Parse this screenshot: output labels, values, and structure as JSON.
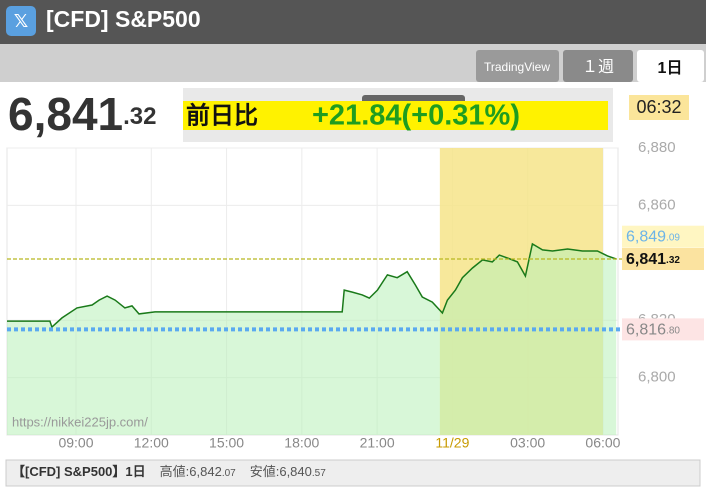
{
  "header": {
    "title": "[CFD] S&P500",
    "icon": "𝕏"
  },
  "tabs": [
    "TradingView",
    "１週",
    "1日"
  ],
  "price": {
    "int": "6,841",
    "dec": ".32"
  },
  "change": {
    "label": "前日比",
    "value": "+21.84(+0.31%)"
  },
  "time": "06:32",
  "watermark": "https://nikkei225jp.com/",
  "footer": {
    "title": "【[CFD] S&P500】1日",
    "high_label": "高値:",
    "high_int": "6,842",
    "high_dec": ".07",
    "low_label": "安値:",
    "low_int": "6,840",
    "low_dec": ".57"
  },
  "chart_data": {
    "type": "line",
    "xlim": [
      6.25,
      30.6
    ],
    "xticks": [
      {
        "value": 9,
        "label": "09:00"
      },
      {
        "value": 12,
        "label": "12:00"
      },
      {
        "value": 15,
        "label": "15:00"
      },
      {
        "value": 18,
        "label": "18:00"
      },
      {
        "value": 21,
        "label": "21:00"
      },
      {
        "value": 24,
        "label": "11/29"
      },
      {
        "value": 27,
        "label": "03:00"
      },
      {
        "value": 30,
        "label": "06:00"
      }
    ],
    "ylim": [
      6780,
      6880
    ],
    "yticks": [
      {
        "value": 6800,
        "label": "6,800"
      },
      {
        "value": 6820,
        "label": "6,820"
      },
      {
        "value": 6860,
        "label": "6,860"
      },
      {
        "value": 6880,
        "label": "6,880"
      }
    ],
    "grid": true,
    "highlight_range": [
      23.5,
      30
    ],
    "series": [
      {
        "color": "#1a7a1a",
        "x": [
          6.25,
          7.96,
          8.04,
          8.44,
          9.04,
          9.64,
          9.92,
          10.24,
          10.56,
          10.95,
          11.23,
          11.51,
          12.15,
          19.61,
          19.69,
          20.01,
          20.41,
          20.69,
          21.01,
          21.41,
          21.8,
          22.2,
          22.52,
          22.8,
          23.2,
          23.6,
          23.8,
          24.12,
          24.4,
          24.8,
          25.2,
          25.59,
          25.87,
          26.19,
          26.59,
          26.91,
          27.19,
          27.59,
          27.99,
          28.59,
          29.18,
          29.78,
          30.18,
          30.53
        ],
        "values": [
          6819.7,
          6819.7,
          6817.6,
          6820.8,
          6824.3,
          6825.3,
          6827,
          6828.4,
          6827,
          6824.3,
          6825,
          6822.2,
          6822.9,
          6822.9,
          6830.5,
          6829.8,
          6828.8,
          6827.7,
          6830.5,
          6835.8,
          6834.8,
          6836.9,
          6832.3,
          6828.1,
          6826.3,
          6822.5,
          6827,
          6830.5,
          6834.8,
          6838.2,
          6841,
          6840.3,
          6842.7,
          6841.7,
          6840.3,
          6835.4,
          6846.6,
          6844.5,
          6844.1,
          6844.8,
          6844.1,
          6844.1,
          6842.4,
          6841.32
        ]
      }
    ],
    "ref_lines": [
      {
        "value": 6849.09,
        "label": "6,849",
        "label_small": ".09"
      },
      {
        "value": 6841.32,
        "label": "6,841",
        "label_small": ".32",
        "color": "#b8b820"
      },
      {
        "value": 6816.8,
        "label": "6,816",
        "label_small": ".80",
        "color": "#5aa9f0"
      }
    ]
  }
}
